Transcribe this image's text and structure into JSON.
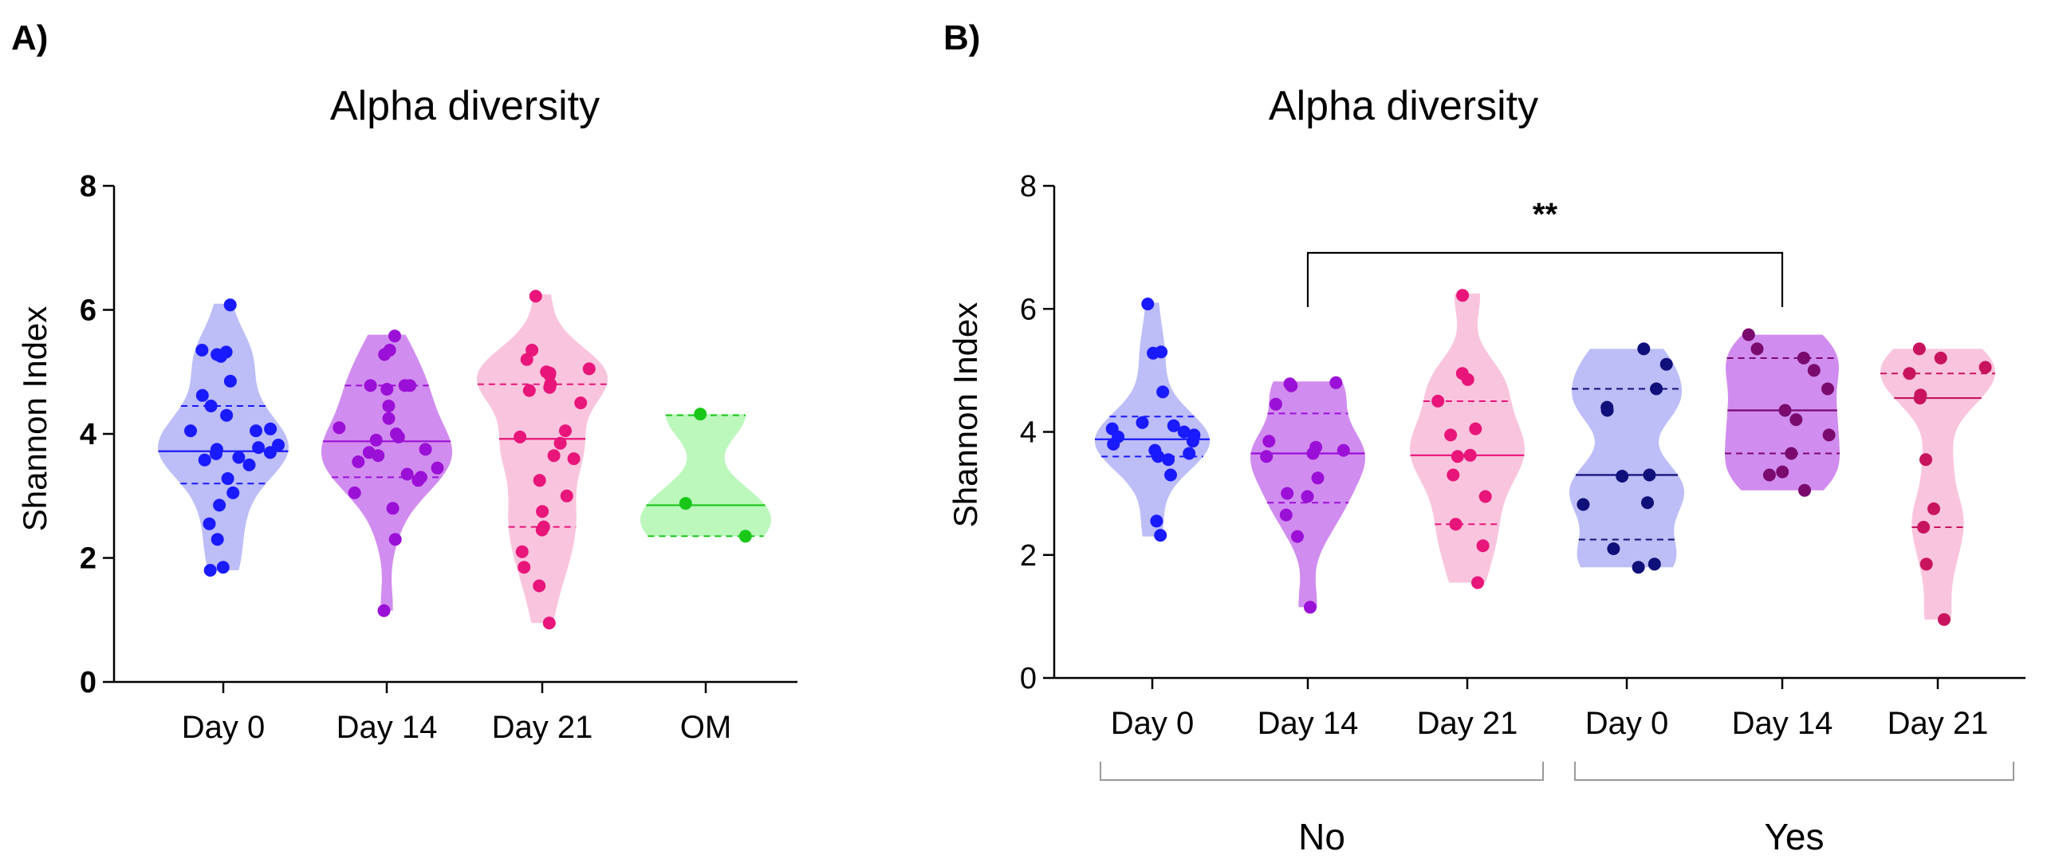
{
  "chart_data": [
    {
      "panel": "A)",
      "type": "violin",
      "title": "Alpha diversity",
      "ylabel": "Shannon Index",
      "xlabel": "",
      "ylim": [
        0,
        8
      ],
      "yticks": [
        0,
        2,
        4,
        6,
        8
      ],
      "categories": [
        "Day 0",
        "Day 14",
        "Day 21",
        "OM"
      ],
      "series": [
        {
          "name": "Day 0",
          "color": "#1a1aff",
          "fill": "#b9b9f7",
          "median": 3.72,
          "q1": 3.2,
          "q3": 4.45,
          "min": 1.8,
          "max": 6.1,
          "values": [
            6.08,
            5.35,
            5.32,
            5.28,
            5.25,
            4.85,
            4.62,
            4.45,
            4.3,
            4.08,
            4.05,
            4.05,
            3.82,
            3.78,
            3.75,
            3.7,
            3.68,
            3.62,
            3.58,
            3.5,
            3.28,
            3.05,
            2.85,
            2.55,
            2.3,
            1.85,
            1.8
          ]
        },
        {
          "name": "Day 14",
          "color": "#9b10d6",
          "fill": "#cf86ee",
          "median": 3.88,
          "q1": 3.3,
          "q3": 4.78,
          "min": 1.15,
          "max": 5.6,
          "values": [
            5.58,
            5.35,
            5.28,
            4.78,
            4.78,
            4.78,
            4.72,
            4.45,
            4.25,
            4.1,
            4.0,
            3.95,
            3.9,
            3.75,
            3.7,
            3.65,
            3.55,
            3.45,
            3.35,
            3.3,
            3.25,
            3.05,
            2.8,
            2.3,
            1.15
          ]
        },
        {
          "name": "Day 21",
          "color": "#e8157a",
          "fill": "#f9c2dc",
          "median": 3.92,
          "q1": 2.5,
          "q3": 4.8,
          "min": 0.95,
          "max": 6.25,
          "values": [
            6.22,
            5.35,
            5.2,
            5.05,
            5.0,
            4.98,
            4.95,
            4.8,
            4.75,
            4.7,
            4.5,
            4.05,
            3.95,
            3.85,
            3.65,
            3.6,
            3.25,
            3.0,
            2.75,
            2.5,
            2.45,
            2.1,
            1.85,
            1.55,
            0.95
          ]
        },
        {
          "name": "OM",
          "color": "#19c719",
          "fill": "#b8f7b8",
          "median": 2.85,
          "q1": 2.35,
          "q3": 4.3,
          "min": 2.35,
          "max": 4.32,
          "values": [
            4.32,
            2.88,
            2.35
          ]
        }
      ]
    },
    {
      "panel": "B)",
      "type": "violin",
      "title": "Alpha diversity",
      "ylabel": "Shannon Index",
      "xlabel": "",
      "ylim": [
        0,
        8
      ],
      "yticks": [
        0,
        2,
        4,
        6,
        8
      ],
      "categories": [
        "Day 0",
        "Day 14",
        "Day 21",
        "Day 0",
        "Day 14",
        "Day 21"
      ],
      "groups": [
        {
          "label": "No",
          "categories": [
            0,
            1,
            2
          ]
        },
        {
          "label": "Yes",
          "categories": [
            3,
            4,
            5
          ]
        }
      ],
      "significance": {
        "label": "**",
        "from": 1,
        "to": 4
      },
      "series": [
        {
          "name": "Day 0",
          "group": "No",
          "color": "#1a1aff",
          "fill": "#b9b9f7",
          "median": 3.88,
          "q1": 3.6,
          "q3": 4.25,
          "min": 2.3,
          "max": 6.1,
          "values": [
            6.08,
            5.3,
            5.28,
            4.65,
            4.15,
            4.1,
            4.05,
            4.0,
            3.95,
            3.92,
            3.85,
            3.8,
            3.7,
            3.65,
            3.6,
            3.55,
            3.3,
            2.55,
            2.32
          ]
        },
        {
          "name": "Day 14",
          "group": "No",
          "color": "#9b10d6",
          "fill": "#cf86ee",
          "median": 3.65,
          "q1": 2.85,
          "q3": 4.3,
          "min": 1.15,
          "max": 4.82,
          "values": [
            4.8,
            4.78,
            4.75,
            4.45,
            3.85,
            3.75,
            3.7,
            3.65,
            3.6,
            3.25,
            3.0,
            2.95,
            2.65,
            2.3,
            1.15
          ]
        },
        {
          "name": "Day 21",
          "group": "No",
          "color": "#e8157a",
          "fill": "#f9c2dc",
          "median": 3.62,
          "q1": 2.5,
          "q3": 4.5,
          "min": 1.55,
          "max": 6.25,
          "values": [
            6.22,
            4.95,
            4.85,
            4.5,
            4.05,
            3.95,
            3.62,
            3.6,
            3.3,
            2.95,
            2.5,
            2.15,
            1.55
          ]
        },
        {
          "name": "Day 0",
          "group": "Yes",
          "color": "#10107a",
          "fill": "#b9b9f7",
          "median": 3.3,
          "q1": 2.25,
          "q3": 4.7,
          "min": 1.8,
          "max": 5.35,
          "values": [
            5.35,
            5.1,
            4.7,
            4.4,
            4.35,
            3.3,
            3.28,
            2.85,
            2.82,
            2.1,
            1.85,
            1.8
          ]
        },
        {
          "name": "Day 14",
          "group": "Yes",
          "color": "#7a0a6e",
          "fill": "#cf86ee",
          "median": 4.35,
          "q1": 3.65,
          "q3": 5.2,
          "min": 3.05,
          "max": 5.58,
          "values": [
            5.58,
            5.35,
            5.2,
            5.0,
            4.7,
            4.35,
            4.2,
            3.95,
            3.65,
            3.35,
            3.3,
            3.05
          ]
        },
        {
          "name": "Day 21",
          "group": "Yes",
          "color": "#c8145e",
          "fill": "#f9c2dc",
          "median": 4.55,
          "q1": 2.45,
          "q3": 4.95,
          "min": 0.95,
          "max": 5.35,
          "values": [
            5.35,
            5.2,
            5.05,
            4.95,
            4.6,
            4.55,
            3.55,
            2.75,
            2.45,
            1.85,
            0.95
          ]
        }
      ]
    }
  ]
}
